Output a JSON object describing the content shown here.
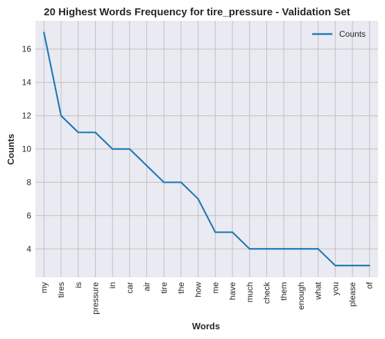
{
  "chart_data": {
    "type": "line",
    "title": "20 Highest Words Frequency for tire_pressure - Validation Set",
    "xlabel": "Words",
    "ylabel": "Counts",
    "categories": [
      "my",
      "tires",
      "is",
      "pressure",
      "in",
      "car",
      "air",
      "tire",
      "the",
      "how",
      "me",
      "have",
      "much",
      "check",
      "them",
      "enough",
      "what",
      "you",
      "please",
      "of"
    ],
    "series": [
      {
        "name": "Counts",
        "values": [
          17,
          12,
          11,
          11,
          10,
          10,
          9,
          8,
          8,
          7,
          5,
          5,
          4,
          4,
          4,
          4,
          4,
          3,
          3,
          3
        ]
      }
    ],
    "yticks": [
      4,
      6,
      8,
      10,
      12,
      14,
      16
    ],
    "ylim": [
      2.3,
      17.7
    ],
    "grid": true,
    "legend_position": "top-right",
    "colors": {
      "line": "#1f77b4",
      "plot_bg": "#eaeaf2",
      "grid": "#c0c0c0"
    }
  }
}
